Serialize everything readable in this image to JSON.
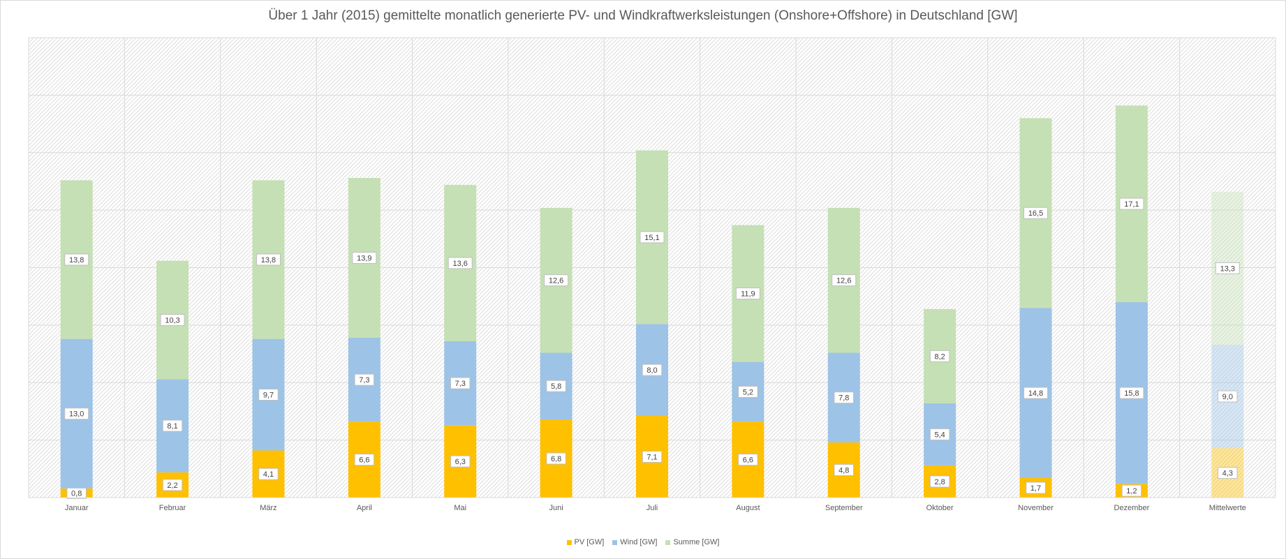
{
  "chart_data": {
    "type": "bar",
    "stacked": true,
    "title": "Über 1 Jahr (2015) gemittelte monatlich generierte PV- und Windkraftwerksleistungen (Onshore+Offshore) in Deutschland  [GW]",
    "xlabel": "",
    "ylabel": "",
    "ylim": [
      0,
      40
    ],
    "grid": true,
    "legend_position": "bottom",
    "categories": [
      "Januar",
      "Februar",
      "März",
      "April",
      "Mai",
      "Juni",
      "Juli",
      "August",
      "September",
      "Oktober",
      "November",
      "Dezember",
      "Mittelwerte"
    ],
    "series": [
      {
        "name": "PV [GW]",
        "color": "#ffc000",
        "values": [
          0.8,
          2.2,
          4.1,
          6.6,
          6.3,
          6.8,
          7.1,
          6.6,
          4.8,
          2.8,
          1.7,
          1.2,
          4.3
        ],
        "labels": [
          "0,8",
          "2,2",
          "4,1",
          "6,6",
          "6,3",
          "6,8",
          "7,1",
          "6,6",
          "4,8",
          "2,8",
          "1,7",
          "1,2",
          "4,3"
        ]
      },
      {
        "name": "Wind [GW]",
        "color": "#9dc3e6",
        "values": [
          13.0,
          8.1,
          9.7,
          7.3,
          7.3,
          5.8,
          8.0,
          5.2,
          7.8,
          5.4,
          14.8,
          15.8,
          9.0
        ],
        "labels": [
          "13,0",
          "8,1",
          "9,7",
          "7,3",
          "7,3",
          "5,8",
          "8,0",
          "5,2",
          "7,8",
          "5,4",
          "14,8",
          "15,8",
          "9,0"
        ]
      },
      {
        "name": "Summe [GW]",
        "color": "#c5e0b4",
        "values": [
          13.8,
          10.3,
          13.8,
          13.9,
          13.6,
          12.6,
          15.1,
          11.9,
          12.6,
          8.2,
          16.5,
          17.1,
          13.3
        ],
        "labels": [
          "13,8",
          "10,3",
          "13,8",
          "13,9",
          "13,6",
          "12,6",
          "15,1",
          "11,9",
          "12,6",
          "8,2",
          "16,5",
          "17,1",
          "13,3"
        ]
      }
    ],
    "faded_categories": [
      "Mittelwerte"
    ]
  }
}
